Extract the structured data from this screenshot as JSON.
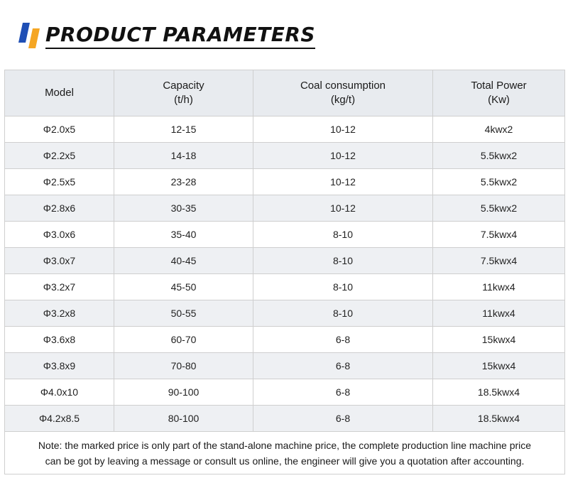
{
  "header": {
    "title": "PRODUCT PARAMETERS",
    "logo_icon": "brand-logo-icon",
    "colors": {
      "logo_blue": "#1f4fb5",
      "logo_orange": "#f5a623"
    }
  },
  "table": {
    "headers": [
      {
        "line1": "Model",
        "line2": ""
      },
      {
        "line1": "Capacity",
        "line2": "(t/h)"
      },
      {
        "line1": "Coal consumption",
        "line2": "(kg/t)"
      },
      {
        "line1": "Total Power",
        "line2": "(Kw)"
      }
    ],
    "rows": [
      [
        "Φ2.0x5",
        "12-15",
        "10-12",
        "4kwx2"
      ],
      [
        "Φ2.2x5",
        "14-18",
        "10-12",
        "5.5kwx2"
      ],
      [
        "Φ2.5x5",
        "23-28",
        "10-12",
        "5.5kwx2"
      ],
      [
        "Φ2.8x6",
        "30-35",
        "10-12",
        "5.5kwx2"
      ],
      [
        "Φ3.0x6",
        "35-40",
        "8-10",
        "7.5kwx4"
      ],
      [
        "Φ3.0x7",
        "40-45",
        "8-10",
        "7.5kwx4"
      ],
      [
        "Φ3.2x7",
        "45-50",
        "8-10",
        "11kwx4"
      ],
      [
        "Φ3.2x8",
        "50-55",
        "8-10",
        "11kwx4"
      ],
      [
        "Φ3.6x8",
        "60-70",
        "6-8",
        "15kwx4"
      ],
      [
        "Φ3.8x9",
        "70-80",
        "6-8",
        "15kwx4"
      ],
      [
        "Φ4.0x10",
        "90-100",
        "6-8",
        "18.5kwx4"
      ],
      [
        "Φ4.2x8.5",
        "80-100",
        "6-8",
        "18.5kwx4"
      ]
    ],
    "note_line1": "Note: the marked price is only part of the stand-alone machine price, the complete production line machine price",
    "note_line2": "can be got by leaving a message or consult us online, the engineer will give you a quotation after accounting."
  }
}
